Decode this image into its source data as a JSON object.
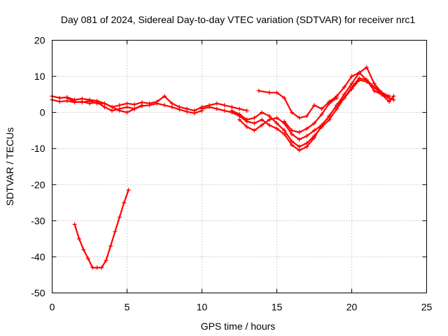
{
  "chart_data": {
    "type": "scatter",
    "title": "Day 081 of 2024, Sidereal Day-to-day VTEC variation (SDTVAR) for receiver nrc1",
    "xlabel": "GPS time / hours",
    "ylabel": "SDTVAR / TECUs",
    "xlim": [
      0,
      25
    ],
    "ylim": [
      -50,
      20
    ],
    "xticks": [
      0,
      5,
      10,
      15,
      20,
      25
    ],
    "yticks": [
      -50,
      -40,
      -30,
      -20,
      -10,
      0,
      10,
      20
    ],
    "grid": true,
    "marker": "plus",
    "color": "#ff0000",
    "series": [
      {
        "name": "track-1",
        "x": [
          0,
          0.5,
          1,
          1.5,
          2,
          2.5,
          3,
          3.5,
          4,
          4.5,
          5,
          5.5,
          6,
          6.5,
          7,
          7.5,
          8,
          8.5,
          9,
          9.5,
          10,
          10.5,
          11,
          11.5,
          12,
          12.5,
          13
        ],
        "y": [
          4.5,
          4,
          4.2,
          3.5,
          3.8,
          3.5,
          3.2,
          2.5,
          1.5,
          2,
          2.5,
          2.2,
          2.8,
          2.5,
          3,
          4.5,
          2.5,
          1.5,
          1,
          0.5,
          1.5,
          2,
          2.5,
          2,
          1.5,
          1,
          0.5
        ]
      },
      {
        "name": "track-2",
        "x": [
          0,
          0.5,
          1,
          1.5,
          2,
          2.5,
          3,
          3.5,
          4,
          4.5,
          5,
          5.5,
          6,
          6.5,
          7,
          7.5,
          8,
          8.5,
          9,
          9.5,
          10
        ],
        "y": [
          3.5,
          3,
          3.2,
          2.8,
          3,
          2.5,
          2.8,
          1.5,
          0.5,
          1,
          1.5,
          1,
          1.8,
          2,
          2.5,
          2,
          1.5,
          0.8,
          0.2,
          -0.2,
          0.5
        ]
      },
      {
        "name": "track-3",
        "x": [
          1,
          1.5,
          2,
          2.5,
          3,
          3.5,
          4,
          4.5,
          5,
          5.5,
          6
        ],
        "y": [
          4,
          3,
          2.8,
          3.2,
          2.5,
          2.5,
          1.5,
          0.5,
          0,
          1,
          2
        ]
      },
      {
        "name": "track-4",
        "x": [
          10,
          10.5,
          11,
          11.5,
          12,
          12.5,
          13,
          13.5,
          14,
          14.5,
          15,
          15.5,
          16,
          16.5,
          17,
          17.5,
          18,
          18.5,
          19,
          19.5,
          20,
          20.5,
          21,
          21.5,
          22,
          22.5,
          22.8
        ],
        "y": [
          1,
          1.5,
          1,
          0.5,
          0,
          -1,
          -2.5,
          -3,
          -2,
          -3.5,
          -4.5,
          -6,
          -9,
          -10.5,
          -9.5,
          -7,
          -3.5,
          -1,
          2,
          4,
          6.5,
          9,
          8.5,
          7,
          5.5,
          4,
          3.5
        ]
      },
      {
        "name": "track-5",
        "x": [
          12,
          12.5,
          13,
          13.5,
          14,
          14.5,
          15,
          15.5,
          16,
          16.5,
          17,
          17.5,
          18,
          18.5,
          19,
          19.5,
          20,
          20.5,
          21,
          21.5,
          22,
          22.5
        ],
        "y": [
          0.5,
          -0.5,
          -2,
          -1.5,
          0,
          -1,
          -3,
          -5,
          -8,
          -9.5,
          -8.5,
          -6.5,
          -4,
          -2,
          1,
          4,
          7,
          9.5,
          9,
          7,
          5,
          4
        ]
      },
      {
        "name": "track-6",
        "x": [
          12.5,
          13,
          13.5,
          14,
          14.5,
          15,
          15.5,
          16,
          16.5,
          17,
          17.5,
          18,
          18.5,
          19,
          19.5,
          20,
          20.5,
          21,
          21.5,
          22,
          22.5
        ],
        "y": [
          -2,
          -4,
          -5,
          -3.5,
          -2,
          -1.5,
          -3,
          -6,
          -7.5,
          -6.5,
          -5,
          -3.5,
          -1,
          2,
          5,
          8,
          11,
          12.5,
          8,
          5.5,
          4.5
        ]
      },
      {
        "name": "track-7",
        "x": [
          13.8,
          14.5,
          15,
          15.5,
          16,
          16.5,
          17,
          17.5,
          18,
          18.5,
          19,
          19.5,
          20,
          20.5,
          21,
          21.5,
          22,
          22.5,
          22.8
        ],
        "y": [
          6,
          5.5,
          5.5,
          4,
          0,
          -1.5,
          -1,
          2,
          1,
          3,
          4.5,
          7,
          10,
          11,
          9,
          6,
          5,
          3,
          4.5
        ]
      },
      {
        "name": "track-8",
        "x": [
          15.5,
          16,
          16.5,
          17,
          17.5,
          18,
          18.5,
          19
        ],
        "y": [
          -2.5,
          -5,
          -5.5,
          -4.5,
          -3,
          -0.5,
          2.5,
          4
        ]
      },
      {
        "name": "track-9",
        "x": [
          1.5,
          1.8,
          2.1,
          2.4,
          2.7,
          3,
          3.3,
          3.6,
          3.9,
          4.2,
          4.5,
          4.8,
          5.1
        ],
        "y": [
          -31,
          -35,
          -38,
          -40.5,
          -43,
          -43,
          -43,
          -41,
          -37,
          -33,
          -29,
          -25,
          -21.5
        ]
      }
    ]
  }
}
